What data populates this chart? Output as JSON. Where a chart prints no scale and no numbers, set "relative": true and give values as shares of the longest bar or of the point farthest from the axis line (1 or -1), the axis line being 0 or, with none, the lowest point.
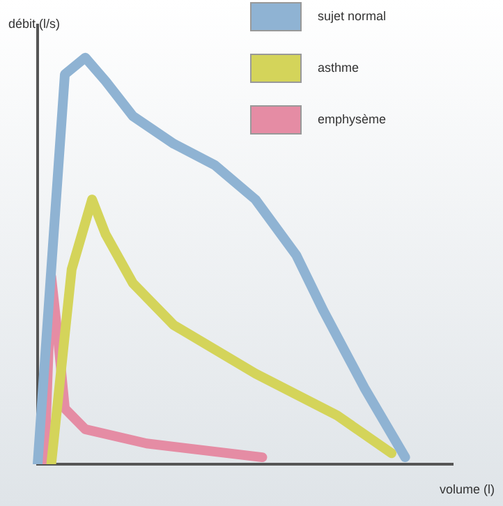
{
  "chart_data": {
    "type": "line",
    "relative": true,
    "xlabel": "volume (l)",
    "ylabel": "débit (l/s)",
    "legend": "top right",
    "grid": false,
    "marker": "none",
    "line_style": "solid",
    "categories": [
      null,
      null,
      null,
      null,
      null,
      null,
      null,
      null,
      null,
      null,
      null,
      null,
      null,
      null,
      null,
      null,
      null,
      null,
      null,
      null,
      null,
      null,
      null,
      null,
      null,
      null,
      null,
      null,
      null,
      null,
      null,
      null,
      null,
      null,
      null,
      null,
      null,
      null,
      null,
      null,
      null,
      null,
      null,
      null,
      null,
      null,
      null,
      null,
      null,
      null,
      null,
      null,
      null,
      null,
      null,
      null,
      null,
      null,
      null,
      null,
      null,
      null
    ],
    "series": [
      {
        "name": "sujet normal",
        "color": "#8fb3d3",
        "values": [
          0,
          null,
          null,
          null,
          0.959,
          null,
          null,
          1,
          null,
          null,
          0.942,
          null,
          null,
          null,
          0.856,
          null,
          null,
          null,
          null,
          null,
          0.788,
          null,
          null,
          null,
          null,
          null,
          0.736,
          null,
          null,
          null,
          null,
          null,
          0.651,
          null,
          null,
          null,
          null,
          null,
          0.514,
          null,
          null,
          null,
          0.377,
          null,
          null,
          null,
          null,
          null,
          0.188,
          null,
          null,
          null,
          null,
          null,
          0.017,
          null,
          null,
          null,
          null,
          null,
          null,
          null
        ]
      },
      {
        "name": "asthme",
        "color": "#d4d45a",
        "values": [
          null,
          null,
          0,
          null,
          null,
          0.479,
          null,
          null,
          0.651,
          null,
          0.565,
          null,
          null,
          null,
          0.445,
          null,
          null,
          null,
          null,
          null,
          0.342,
          null,
          null,
          null,
          null,
          null,
          null,
          null,
          null,
          null,
          null,
          null,
          0.223,
          null,
          null,
          null,
          null,
          null,
          null,
          null,
          null,
          null,
          null,
          null,
          0.12,
          null,
          null,
          null,
          null,
          null,
          null,
          null,
          0.027,
          null,
          null,
          null,
          null,
          null,
          null,
          null,
          null,
          null
        ]
      },
      {
        "name": "emphysème",
        "color": "#e58ca4",
        "values": [
          null,
          0,
          0.462,
          0.308,
          0.137,
          null,
          null,
          0.086,
          null,
          null,
          null,
          null,
          null,
          null,
          null,
          null,
          0.051,
          null,
          null,
          null,
          null,
          null,
          null,
          null,
          null,
          null,
          null,
          null,
          null,
          null,
          null,
          null,
          null,
          0.017,
          null,
          null,
          null,
          null,
          null,
          null,
          null,
          null,
          null,
          null,
          null,
          null,
          null,
          null,
          null,
          null,
          null,
          null,
          null,
          null,
          null,
          null,
          null,
          null,
          null,
          null,
          null,
          null
        ]
      }
    ]
  }
}
